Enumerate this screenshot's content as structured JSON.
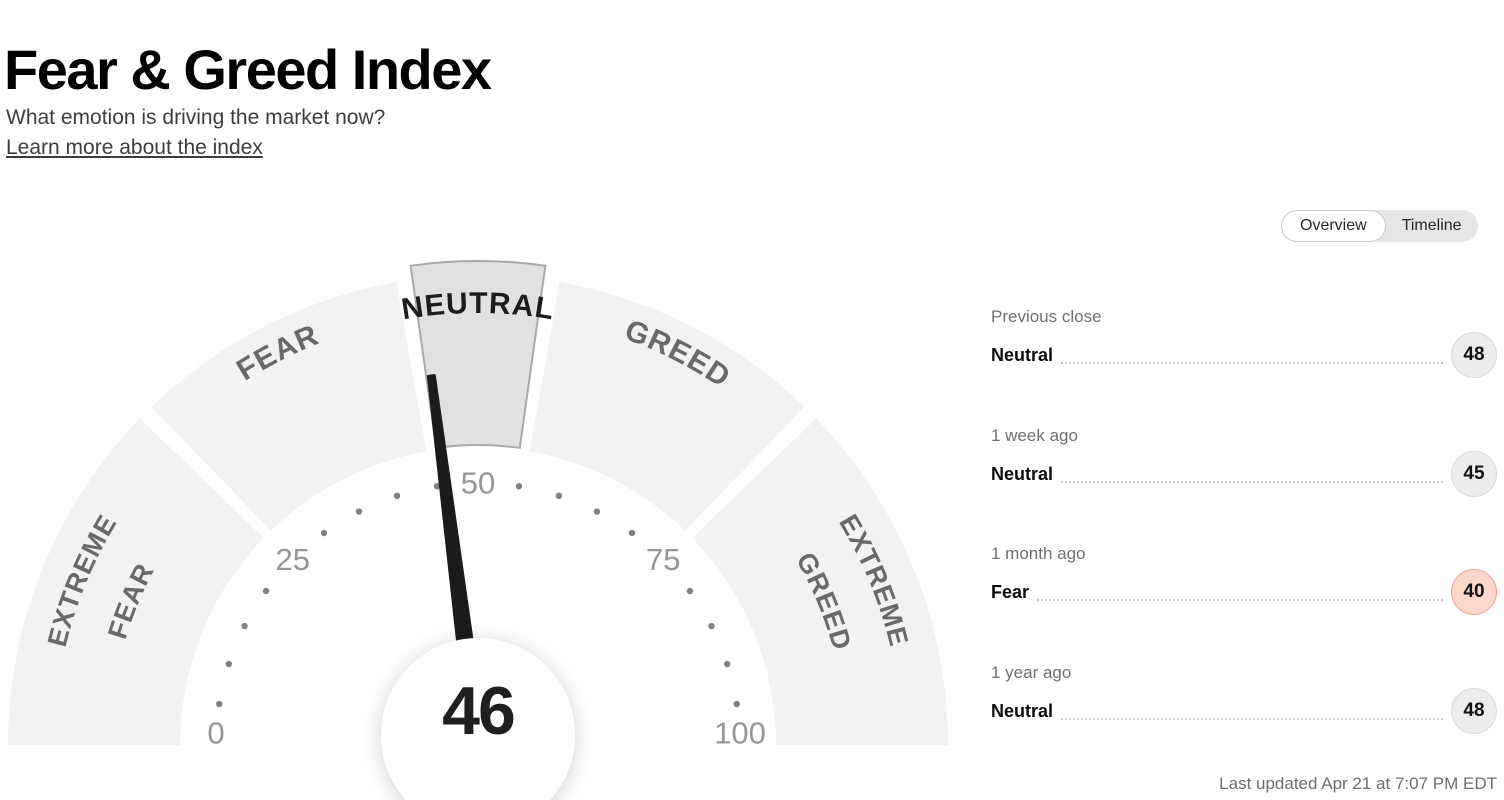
{
  "page": {
    "title": "Fear & Greed Index",
    "subtitle": "What emotion is driving the market now?",
    "learn_more": "Learn more about the index",
    "last_updated": "Last updated Apr 21 at 7:07 PM EDT"
  },
  "tabs": {
    "overview": "Overview",
    "timeline": "Timeline",
    "selected": "Overview"
  },
  "history": [
    {
      "label": "Previous close",
      "rating": "Neutral",
      "value": "48",
      "tone": "neutral"
    },
    {
      "label": "1 week ago",
      "rating": "Neutral",
      "value": "45",
      "tone": "neutral"
    },
    {
      "label": "1 month ago",
      "rating": "Fear",
      "value": "40",
      "tone": "fear"
    },
    {
      "label": "1 year ago",
      "rating": "Neutral",
      "value": "48",
      "tone": "neutral"
    }
  ],
  "colors": {
    "band_fill": "#f2f2f2",
    "band_fill_highlight": "#e1e1e1",
    "band_stroke_highlight": "#a9a9a9",
    "band_label": "#696969",
    "band_label_highlight": "#1c1c1c",
    "axis_number": "#969696",
    "tick_dot": "#818181",
    "needle": "#1b1b1b",
    "badge_neutral_bg": "#ececec",
    "badge_fear_bg": "#fcd8cb",
    "badge_fear_border": "#f2a49c"
  },
  "chart_data": {
    "type": "gauge",
    "title": "Fear & Greed Index",
    "value": 46,
    "rating": "Neutral",
    "min": 0,
    "max": 100,
    "axis_ticks": [
      0,
      25,
      50,
      75,
      100
    ],
    "dot_step": 5,
    "bands": [
      {
        "label": "EXTREME FEAR",
        "lines": [
          "EXTREME",
          "FEAR"
        ],
        "from": 0,
        "to": 25,
        "highlighted": false
      },
      {
        "label": "FEAR",
        "lines": [
          "FEAR"
        ],
        "from": 25,
        "to": 45,
        "highlighted": false
      },
      {
        "label": "NEUTRAL",
        "lines": [
          "NEUTRAL"
        ],
        "from": 45,
        "to": 55,
        "highlighted": true
      },
      {
        "label": "GREED",
        "lines": [
          "GREED"
        ],
        "from": 55,
        "to": 75,
        "highlighted": false
      },
      {
        "label": "EXTREME GREED",
        "lines": [
          "EXTREME",
          "GREED"
        ],
        "from": 75,
        "to": 100,
        "highlighted": false
      }
    ],
    "history": [
      {
        "label": "Previous close",
        "rating": "Neutral",
        "value": 48
      },
      {
        "label": "1 week ago",
        "rating": "Neutral",
        "value": 45
      },
      {
        "label": "1 month ago",
        "rating": "Fear",
        "value": 40
      },
      {
        "label": "1 year ago",
        "rating": "Neutral",
        "value": 48
      }
    ]
  }
}
